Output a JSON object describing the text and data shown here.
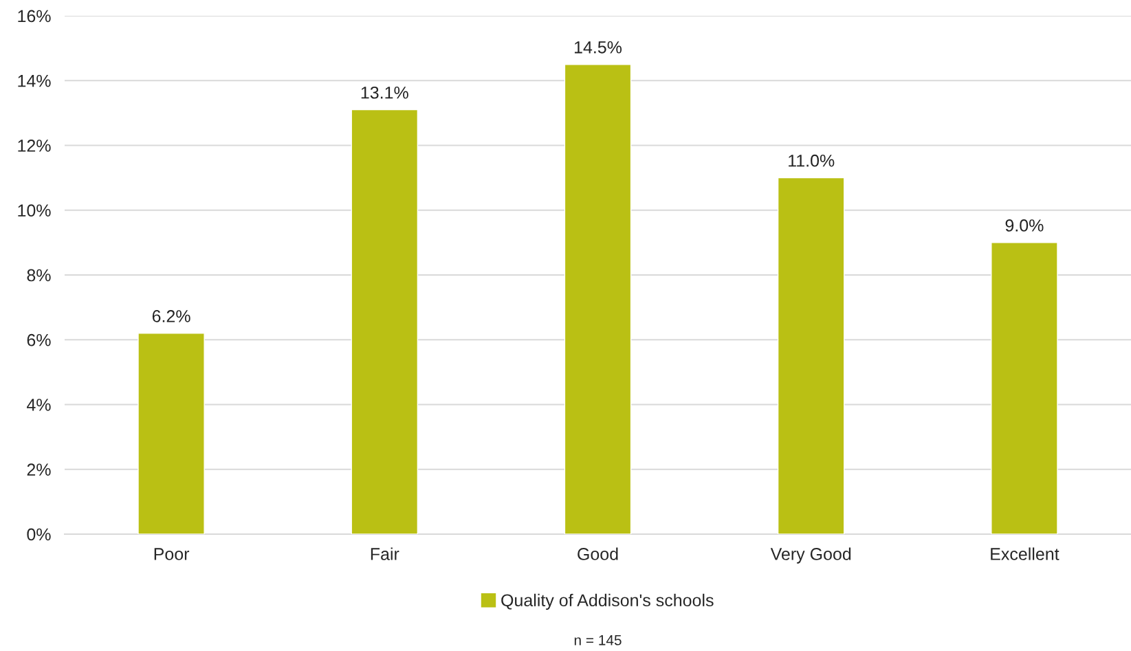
{
  "chart_data": {
    "type": "bar",
    "categories": [
      "Poor",
      "Fair",
      "Good",
      "Very Good",
      "Excellent"
    ],
    "series": [
      {
        "name": "Quality of Addison's schools",
        "color": "#bac014",
        "values": [
          6.2,
          13.1,
          14.5,
          11.0,
          9.0
        ],
        "value_labels": [
          "6.2%",
          "13.1%",
          "14.5%",
          "11.0%",
          "9.0%"
        ]
      }
    ],
    "ylim": [
      0,
      16
    ],
    "yticks": [
      {
        "value": 0,
        "label": "0%"
      },
      {
        "value": 2,
        "label": "2%"
      },
      {
        "value": 4,
        "label": "4%"
      },
      {
        "value": 6,
        "label": "6%"
      },
      {
        "value": 8,
        "label": "8%"
      },
      {
        "value": 10,
        "label": "10%"
      },
      {
        "value": 12,
        "label": "12%"
      },
      {
        "value": 14,
        "label": "14%"
      },
      {
        "value": 16,
        "label": "16%"
      }
    ],
    "grid": "y",
    "legend": "bottom",
    "annotations": [
      "n = 145"
    ]
  }
}
